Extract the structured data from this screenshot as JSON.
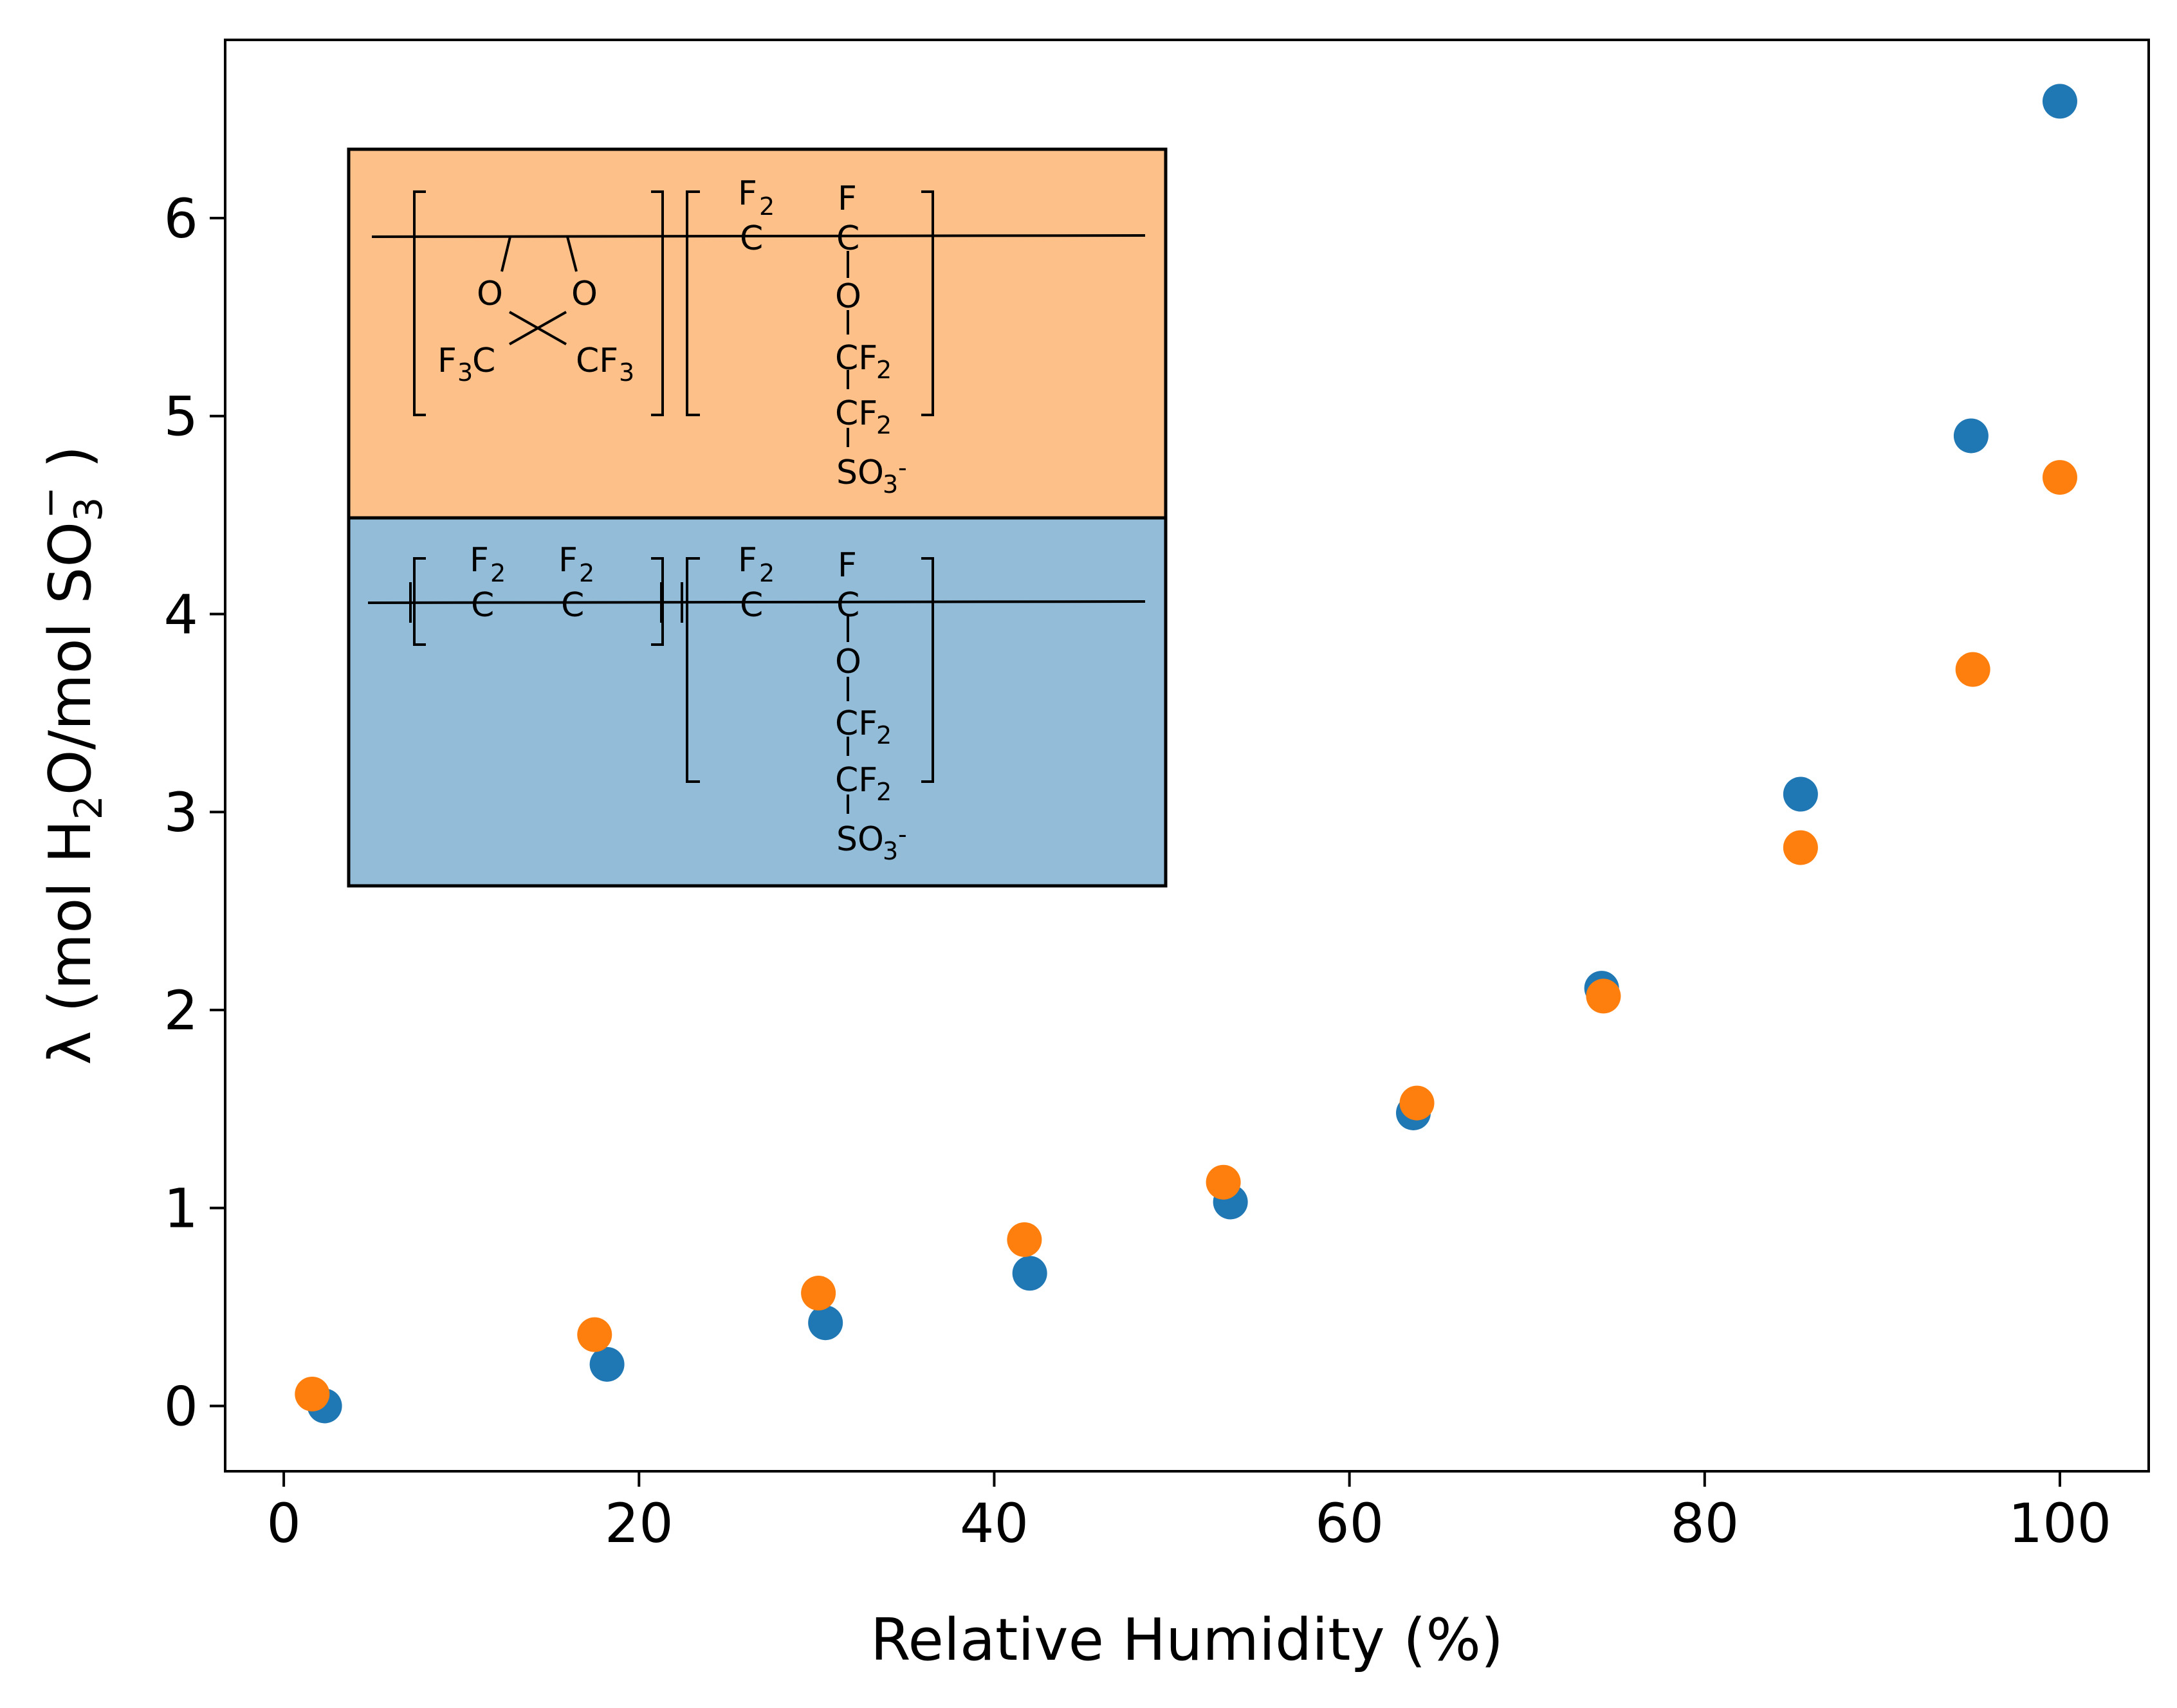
{
  "chart_data": {
    "type": "scatter",
    "title": "",
    "xlabel": "Relative Humidity (%)",
    "ylabel": {
      "prefix": "λ (mol H",
      "sub1": "2",
      "mid": "O/mol SO",
      "sub2": "3",
      "sup2": "−",
      "suffix": " )"
    },
    "xlim": [
      -3.3,
      105
    ],
    "ylim": [
      -0.33,
      6.9
    ],
    "xticks": [
      0,
      20,
      40,
      60,
      80,
      100
    ],
    "yticks": [
      0,
      1,
      2,
      3,
      4,
      5,
      6
    ],
    "grid": false,
    "legend": "none",
    "series": [
      {
        "color": "#1f77b4",
        "x": [
          2.3,
          18.2,
          30.5,
          42.0,
          53.3,
          63.6,
          74.2,
          85.4,
          95.0,
          100.0
        ],
        "y": [
          0.0,
          0.21,
          0.42,
          0.67,
          1.03,
          1.48,
          2.11,
          3.09,
          4.9,
          6.59
        ]
      },
      {
        "color": "#ff7f0e",
        "x": [
          1.6,
          17.5,
          30.1,
          41.7,
          52.9,
          63.8,
          74.3,
          85.4,
          95.1,
          100.0
        ],
        "y": [
          0.06,
          0.36,
          0.57,
          0.84,
          1.13,
          1.53,
          2.07,
          2.82,
          3.72,
          4.69
        ]
      }
    ]
  },
  "inset": {
    "top_color": "#fdc088",
    "bottom_color": "#93bcd9",
    "top_panel": {
      "labels": [
        "F",
        "2",
        "C",
        "F",
        "C",
        "O",
        "O",
        "O",
        "F",
        "3",
        "C",
        "CF",
        "3",
        "CF",
        "2",
        "CF",
        "2",
        "SO",
        "3",
        "-"
      ]
    },
    "bottom_panel": {
      "labels": [
        "F",
        "2",
        "C",
        "F",
        "2",
        "C",
        "F",
        "2",
        "C",
        "F",
        "C",
        "O",
        "CF",
        "2",
        "CF",
        "2",
        "SO",
        "3",
        "-"
      ]
    }
  }
}
